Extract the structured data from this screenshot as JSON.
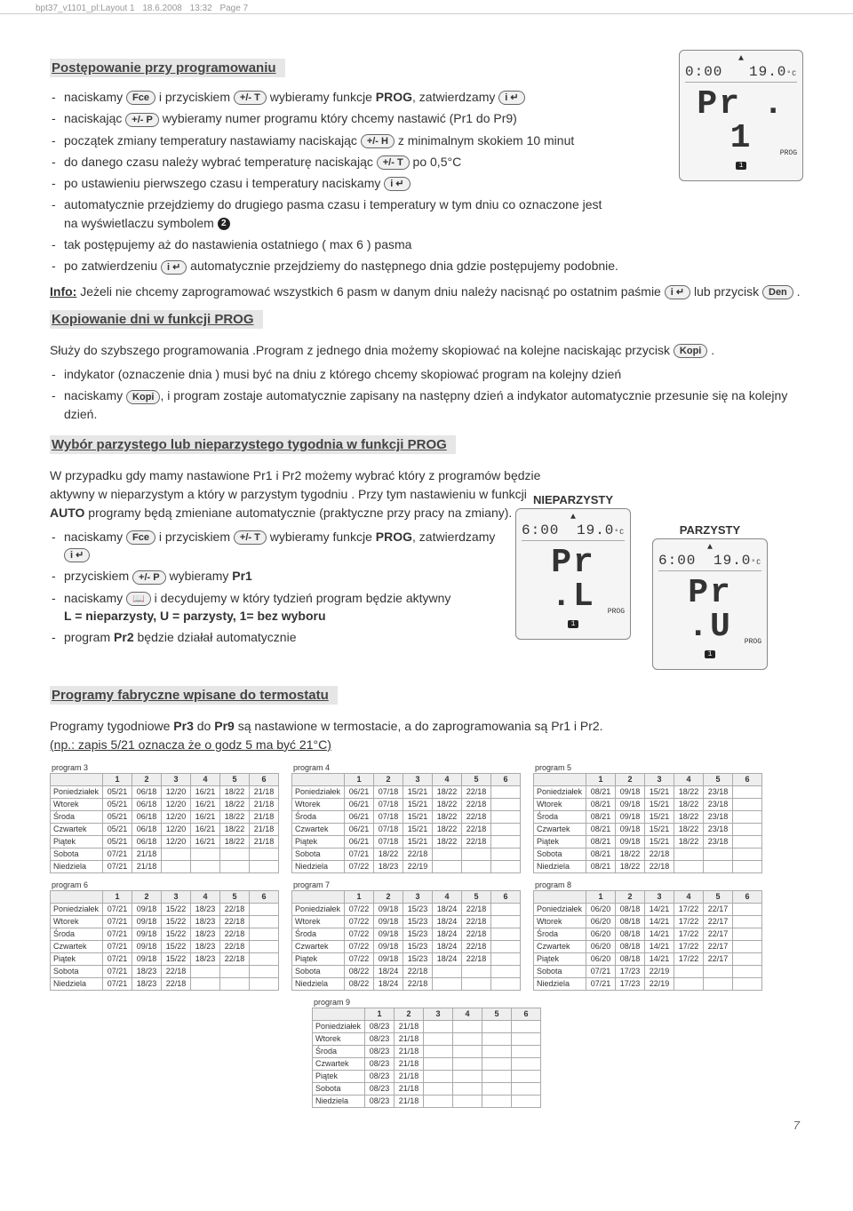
{
  "crop": {
    "file": "bpt37_v1101_pl:Layout 1",
    "date": "18.6.2008",
    "time": "13:32",
    "page": "Page 7"
  },
  "sections": {
    "s1": "Postępowanie przy programowaniu",
    "s2": "Kopiowanie dni w funkcji PROG",
    "s3": "Wybór parzystego lub nieparzystego tygodnia w funkcji PROG",
    "s4": "Programy fabryczne wpisane do termostatu"
  },
  "btns": {
    "fce": "Fce",
    "plusT": "+/- T",
    "ienter": "i ↵",
    "plusP": "+/- P",
    "plusH": "+/- H",
    "den": "Den",
    "kopi": "Kopi",
    "book": "📖"
  },
  "proc": {
    "l1a": "naciskamy ",
    "l1b": " i przyciskiem ",
    "l1c": " wybieramy funkcje ",
    "l1d": "PROG",
    "l1e": ", zatwierdzamy ",
    "l2a": "naciskając ",
    "l2b": " wybieramy numer programu który chcemy nastawić (Pr1 do Pr9)",
    "l3a": "początek zmiany temperatury nastawiamy naciskając ",
    "l3b": " z minimalnym skokiem 10 minut",
    "l4a": "do danego czasu należy wybrać temperaturę naciskając ",
    "l4b": " po 0,5°C",
    "l5": "po ustawieniu pierwszego czasu i temperatury naciskamy ",
    "l6a": "automatycznie przejdziemy do drugiego pasma czasu i temperatury w tym dniu co oznaczone jest na wyświetlaczu symbolem ",
    "l7": "tak postępujemy aż do nastawienia ostatniego ( max 6 ) pasma",
    "l8a": "po zatwierdzeniu ",
    "l8b": " automatycznie przejdziemy do następnego dnia gdzie postępujemy podobnie."
  },
  "info": {
    "label": "Info:",
    "texta": " Jeżeli nie chcemy zaprogramować wszystkich 6 pasm w danym dniu należy nacisnąć po ostatnim paśmie ",
    "textb": " lub przycisk ",
    "textc": " ."
  },
  "copy": {
    "intro1": "Służy do szybszego programowania .Program z jednego dnia możemy skopiować na kolejne naciskając przycisk ",
    "intro2": " .",
    "l1": "indykator (oznaczenie dnia ) musi być na dniu z którego chcemy skopiować program na kolejny dzień",
    "l2a": "naciskamy ",
    "l2b": ", i program zostaje automatycznie zapisany na następny dzień a indykator automatycznie przesunie się na kolejny dzień."
  },
  "week": {
    "intro1": "W przypadku gdy mamy nastawione Pr1 i Pr2 możemy wybrać który z programów będzie aktywny w nieparzystym a który w parzystym tygodniu . Przy tym nastawieniu w funkcji ",
    "auto": "AUTO",
    "intro2": " programy będą zmieniane automatycznie (praktyczne przy pracy na zmiany).",
    "l1a": "naciskamy ",
    "l1b": " i przyciskiem ",
    "l1c": " wybieramy funkcje ",
    "l1d": "PROG",
    "l1e": ", zatwierdzamy ",
    "l2a": "przyciskiem ",
    "l2b": " wybieramy ",
    "l2c": "Pr1",
    "l3a": "naciskamy  ",
    "l3b": " i decydujemy w który tydzień program będzie aktywny",
    "l3c": "L = nieparzysty, U = parzysty, 1= bez wyboru",
    "l4a": "program ",
    "l4b": "Pr2",
    "l4c": " będzie działał automatycznie",
    "odd": "NIEPARZYSTY",
    "even": "PARZYSTY"
  },
  "factory": {
    "intro1": "Programy tygodniowe ",
    "pr3": "Pr3",
    "intro2": " do ",
    "pr9": "Pr9",
    "intro3": " są nastawione w termostacie, a do zaprogramowania są Pr1 i Pr2.",
    "note": "(np.: zapis 5/21 oznacza że o godz 5 ma być 21°C)"
  },
  "disp1": {
    "top1": "0:00",
    "top2": "19.0",
    "dc": "°C",
    "big": "Pr . 1",
    "tag": "PROG",
    "bot": "1"
  },
  "dispL": {
    "top1": "6:00",
    "top2": "19.0",
    "dc": "°C",
    "big": "Pr .L",
    "tag": "PROG",
    "bot": "1"
  },
  "dispU": {
    "top1": "6:00",
    "top2": "19.0",
    "dc": "°C",
    "big": "Pr .U",
    "tag": "PROG",
    "bot": "1"
  },
  "days": [
    "Poniedziałek",
    "Wtorek",
    "Środa",
    "Czwartek",
    "Piątek",
    "Sobota",
    "Niedziela"
  ],
  "progs": {
    "3": {
      "rows": [
        [
          "05/21",
          "06/18",
          "12/20",
          "16/21",
          "18/22",
          "21/18"
        ],
        [
          "05/21",
          "06/18",
          "12/20",
          "16/21",
          "18/22",
          "21/18"
        ],
        [
          "05/21",
          "06/18",
          "12/20",
          "16/21",
          "18/22",
          "21/18"
        ],
        [
          "05/21",
          "06/18",
          "12/20",
          "16/21",
          "18/22",
          "21/18"
        ],
        [
          "05/21",
          "06/18",
          "12/20",
          "16/21",
          "18/22",
          "21/18"
        ],
        [
          "07/21",
          "21/18",
          "",
          "",
          "",
          ""
        ],
        [
          "07/21",
          "21/18",
          "",
          "",
          "",
          ""
        ]
      ]
    },
    "4": {
      "rows": [
        [
          "06/21",
          "07/18",
          "15/21",
          "18/22",
          "22/18",
          ""
        ],
        [
          "06/21",
          "07/18",
          "15/21",
          "18/22",
          "22/18",
          ""
        ],
        [
          "06/21",
          "07/18",
          "15/21",
          "18/22",
          "22/18",
          ""
        ],
        [
          "06/21",
          "07/18",
          "15/21",
          "18/22",
          "22/18",
          ""
        ],
        [
          "06/21",
          "07/18",
          "15/21",
          "18/22",
          "22/18",
          ""
        ],
        [
          "07/21",
          "18/22",
          "22/18",
          "",
          "",
          ""
        ],
        [
          "07/22",
          "18/23",
          "22/19",
          "",
          "",
          ""
        ]
      ]
    },
    "5": {
      "rows": [
        [
          "08/21",
          "09/18",
          "15/21",
          "18/22",
          "23/18",
          ""
        ],
        [
          "08/21",
          "09/18",
          "15/21",
          "18/22",
          "23/18",
          ""
        ],
        [
          "08/21",
          "09/18",
          "15/21",
          "18/22",
          "23/18",
          ""
        ],
        [
          "08/21",
          "09/18",
          "15/21",
          "18/22",
          "23/18",
          ""
        ],
        [
          "08/21",
          "09/18",
          "15/21",
          "18/22",
          "23/18",
          ""
        ],
        [
          "08/21",
          "18/22",
          "22/18",
          "",
          "",
          ""
        ],
        [
          "08/21",
          "18/22",
          "22/18",
          "",
          "",
          ""
        ]
      ]
    },
    "6": {
      "rows": [
        [
          "07/21",
          "09/18",
          "15/22",
          "18/23",
          "22/18",
          ""
        ],
        [
          "07/21",
          "09/18",
          "15/22",
          "18/23",
          "22/18",
          ""
        ],
        [
          "07/21",
          "09/18",
          "15/22",
          "18/23",
          "22/18",
          ""
        ],
        [
          "07/21",
          "09/18",
          "15/22",
          "18/23",
          "22/18",
          ""
        ],
        [
          "07/21",
          "09/18",
          "15/22",
          "18/23",
          "22/18",
          ""
        ],
        [
          "07/21",
          "18/23",
          "22/18",
          "",
          "",
          ""
        ],
        [
          "07/21",
          "18/23",
          "22/18",
          "",
          "",
          ""
        ]
      ]
    },
    "7": {
      "rows": [
        [
          "07/22",
          "09/18",
          "15/23",
          "18/24",
          "22/18",
          ""
        ],
        [
          "07/22",
          "09/18",
          "15/23",
          "18/24",
          "22/18",
          ""
        ],
        [
          "07/22",
          "09/18",
          "15/23",
          "18/24",
          "22/18",
          ""
        ],
        [
          "07/22",
          "09/18",
          "15/23",
          "18/24",
          "22/18",
          ""
        ],
        [
          "07/22",
          "09/18",
          "15/23",
          "18/24",
          "22/18",
          ""
        ],
        [
          "08/22",
          "18/24",
          "22/18",
          "",
          "",
          ""
        ],
        [
          "08/22",
          "18/24",
          "22/18",
          "",
          "",
          ""
        ]
      ]
    },
    "8": {
      "rows": [
        [
          "06/20",
          "08/18",
          "14/21",
          "17/22",
          "22/17",
          ""
        ],
        [
          "06/20",
          "08/18",
          "14/21",
          "17/22",
          "22/17",
          ""
        ],
        [
          "06/20",
          "08/18",
          "14/21",
          "17/22",
          "22/17",
          ""
        ],
        [
          "06/20",
          "08/18",
          "14/21",
          "17/22",
          "22/17",
          ""
        ],
        [
          "06/20",
          "08/18",
          "14/21",
          "17/22",
          "22/17",
          ""
        ],
        [
          "07/21",
          "17/23",
          "22/19",
          "",
          "",
          ""
        ],
        [
          "07/21",
          "17/23",
          "22/19",
          "",
          "",
          ""
        ]
      ]
    },
    "9": {
      "rows": [
        [
          "08/23",
          "21/18",
          "",
          "",
          "",
          ""
        ],
        [
          "08/23",
          "21/18",
          "",
          "",
          "",
          ""
        ],
        [
          "08/23",
          "21/18",
          "",
          "",
          "",
          ""
        ],
        [
          "08/23",
          "21/18",
          "",
          "",
          "",
          ""
        ],
        [
          "08/23",
          "21/18",
          "",
          "",
          "",
          ""
        ],
        [
          "08/23",
          "21/18",
          "",
          "",
          "",
          ""
        ],
        [
          "08/23",
          "21/18",
          "",
          "",
          "",
          ""
        ]
      ]
    }
  },
  "pagenum": "7",
  "progword": "program"
}
